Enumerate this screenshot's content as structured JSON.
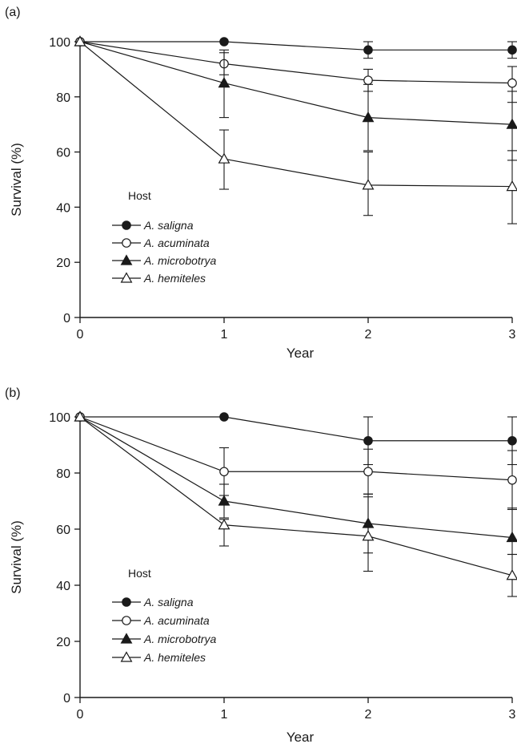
{
  "chart_data": [
    {
      "type": "line",
      "panel_label": "(a)",
      "xlabel": "Year",
      "ylabel": "Survival (%)",
      "xlim": [
        0,
        3
      ],
      "ylim": [
        0,
        100
      ],
      "x_ticks": [
        0,
        1,
        2,
        3
      ],
      "y_ticks": [
        0,
        20,
        40,
        60,
        80,
        100
      ],
      "grid": false,
      "legend": {
        "title": "Host",
        "placement": "center-left"
      },
      "x": [
        0,
        1,
        2,
        3
      ],
      "series": [
        {
          "name": "A. saligna",
          "marker": "filled-circle",
          "values": [
            100,
            100,
            97,
            97
          ],
          "err_lower": [
            0,
            0,
            3,
            3
          ],
          "err_upper": [
            0,
            0,
            3,
            3
          ]
        },
        {
          "name": "A. acuminata",
          "marker": "open-circle",
          "values": [
            100,
            92,
            86,
            85
          ],
          "err_lower": [
            0,
            4,
            4,
            7
          ],
          "err_upper": [
            0,
            4,
            4,
            6
          ]
        },
        {
          "name": "A. microbotrya",
          "marker": "filled-triangle",
          "values": [
            100,
            85,
            72.5,
            70
          ],
          "err_lower": [
            0,
            12.5,
            12,
            13
          ],
          "err_upper": [
            0,
            12,
            12,
            12
          ]
        },
        {
          "name": "A. hemiteles",
          "marker": "open-triangle",
          "values": [
            100,
            57.5,
            48,
            47.5
          ],
          "err_lower": [
            0,
            11,
            11,
            13.5
          ],
          "err_upper": [
            0,
            10.5,
            12,
            13
          ]
        }
      ]
    },
    {
      "type": "line",
      "panel_label": "(b)",
      "xlabel": "Year",
      "ylabel": "Survival (%)",
      "xlim": [
        0,
        3
      ],
      "ylim": [
        0,
        100
      ],
      "x_ticks": [
        0,
        1,
        2,
        3
      ],
      "y_ticks": [
        0,
        20,
        40,
        60,
        80,
        100
      ],
      "grid": false,
      "legend": {
        "title": "Host",
        "placement": "center-left"
      },
      "x": [
        0,
        1,
        2,
        3
      ],
      "series": [
        {
          "name": "A. saligna",
          "marker": "filled-circle",
          "values": [
            100,
            100,
            91.5,
            91.5
          ],
          "err_lower": [
            0,
            0,
            8.5,
            8.5
          ],
          "err_upper": [
            0,
            0,
            8.5,
            8.5
          ]
        },
        {
          "name": "A. acuminata",
          "marker": "open-circle",
          "values": [
            100,
            80.5,
            80.5,
            77.5
          ],
          "err_lower": [
            0,
            8.5,
            8,
            10.5
          ],
          "err_upper": [
            0,
            8.5,
            8,
            10.5
          ]
        },
        {
          "name": "A. microbotrya",
          "marker": "filled-triangle",
          "values": [
            100,
            70,
            62,
            57
          ],
          "err_lower": [
            0,
            6,
            17,
            6
          ],
          "err_upper": [
            0,
            6,
            10.5,
            10.5
          ]
        },
        {
          "name": "A. hemiteles",
          "marker": "open-triangle",
          "values": [
            100,
            61.5,
            57.5,
            43.5
          ],
          "err_lower": [
            0,
            7.5,
            6,
            7.5
          ],
          "err_upper": [
            0,
            2,
            14,
            7.5
          ]
        }
      ]
    }
  ]
}
